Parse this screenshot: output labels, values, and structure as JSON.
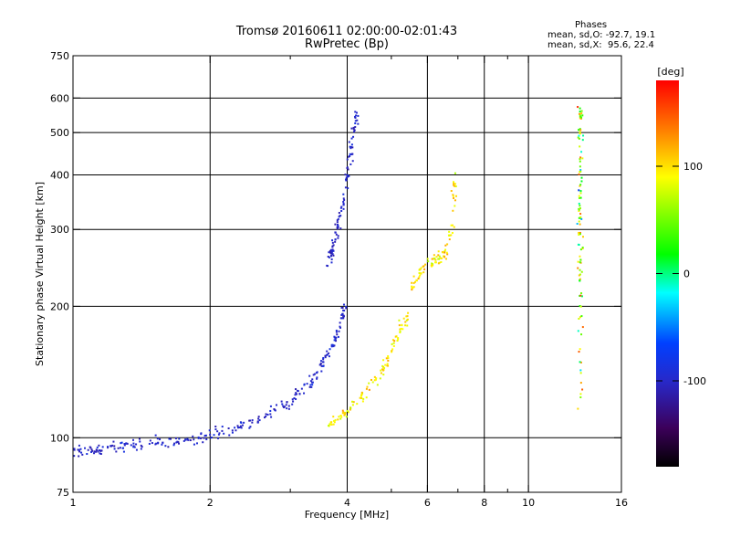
{
  "title_line1": "Tromsø 20160611 02:00:00-02:01:43",
  "title_line2": "RwPretec (Bp)",
  "stats": {
    "title": "Phases",
    "o_mode": "mean, sd,O: -92.7, 19.1",
    "x_mode": "mean, sd,X:  95.6, 22.4"
  },
  "colorbar": {
    "label": "[deg]",
    "ticks": [
      "100",
      "0",
      "-100"
    ],
    "tick_values": [
      100,
      0,
      -100
    ],
    "range": [
      -180,
      180
    ]
  },
  "chart_data": {
    "type": "scatter",
    "xlabel": "Frequency [MHz]",
    "ylabel": "Stationary phase Virtual Height [km]",
    "xscale": "log",
    "yscale": "log",
    "xlim": [
      1,
      16
    ],
    "ylim": [
      75,
      750
    ],
    "xticks": [
      1,
      2,
      4,
      6,
      8,
      10,
      16
    ],
    "xtick_labels": [
      "1",
      "2",
      "4",
      "6",
      "8",
      "10",
      "16"
    ],
    "xminor": [
      3,
      5,
      7,
      9
    ],
    "yticks": [
      75,
      100,
      200,
      300,
      400,
      500,
      600,
      750
    ],
    "ytick_labels": [
      "75",
      "100",
      "200",
      "300",
      "400",
      "500",
      "600",
      "750"
    ],
    "grid_x": [
      2,
      4,
      6,
      8,
      10
    ],
    "grid_y": [
      100,
      200,
      300,
      400,
      500,
      600
    ],
    "color_variable": "Phase [deg]",
    "traces": [
      {
        "points": [
          [
            1.0,
            93
          ],
          [
            1.1,
            93
          ],
          [
            1.2,
            95
          ],
          [
            1.3,
            96
          ],
          [
            1.5,
            97
          ],
          [
            1.7,
            98
          ],
          [
            1.9,
            100
          ],
          [
            2.1,
            103
          ],
          [
            2.4,
            107
          ],
          [
            2.7,
            113
          ],
          [
            3.0,
            121
          ],
          [
            3.3,
            133
          ],
          [
            3.5,
            146
          ],
          [
            3.7,
            160
          ],
          [
            3.85,
            180
          ],
          [
            3.95,
            200
          ]
        ],
        "phase_mean": -100,
        "phase_sd": 15
      },
      {
        "points": [
          [
            3.6,
            240
          ],
          [
            3.7,
            270
          ],
          [
            3.8,
            300
          ],
          [
            3.9,
            340
          ],
          [
            4.0,
            400
          ],
          [
            4.1,
            480
          ],
          [
            4.2,
            560
          ]
        ],
        "phase_mean": -100,
        "phase_sd": 15
      },
      {
        "points": [
          [
            3.6,
            105
          ],
          [
            3.9,
            112
          ],
          [
            4.2,
            120
          ],
          [
            4.6,
            135
          ],
          [
            4.9,
            150
          ],
          [
            5.2,
            175
          ],
          [
            5.5,
            190
          ]
        ],
        "phase_mean": 95,
        "phase_sd": 25
      },
      {
        "points": [
          [
            5.5,
            220
          ],
          [
            5.8,
            240
          ],
          [
            6.2,
            255
          ],
          [
            6.5,
            260
          ],
          [
            6.8,
            300
          ],
          [
            6.9,
            400
          ]
        ],
        "phase_mean": 100,
        "phase_sd": 30
      },
      {
        "points": [
          [
            13.0,
            120
          ],
          [
            13.0,
            200
          ],
          [
            13.0,
            260
          ],
          [
            13.0,
            320
          ],
          [
            13.0,
            400
          ],
          [
            13.0,
            500
          ],
          [
            13.0,
            580
          ]
        ],
        "phase_mean": 60,
        "phase_sd": 90
      }
    ]
  }
}
